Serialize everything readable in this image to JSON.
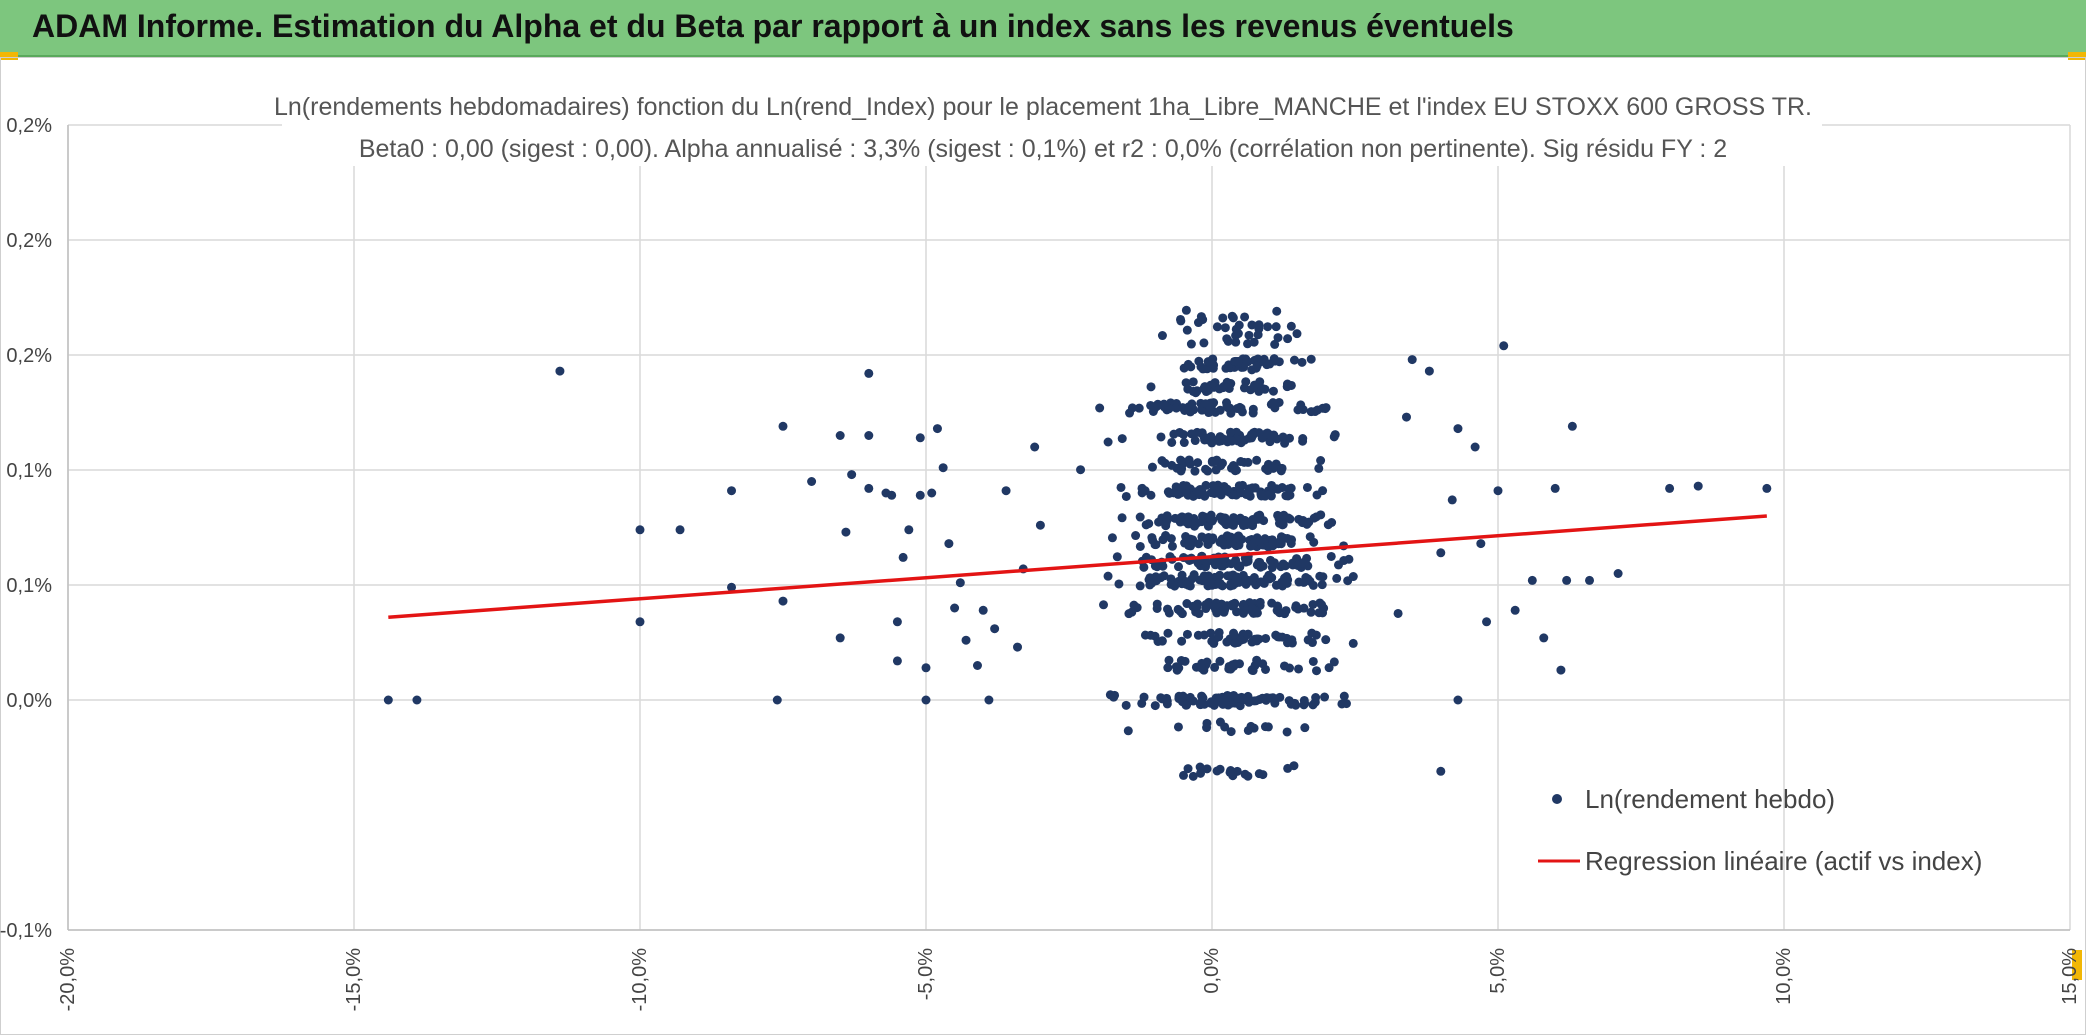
{
  "banner": {
    "title": "ADAM Informe. Estimation du Alpha et du Beta par rapport à un index sans les revenus éventuels",
    "color": "#7dc67e"
  },
  "chart_data": {
    "type": "scatter",
    "title_line1": "Ln(rendements hebdomadaires) fonction du Ln(rend_Index) pour le placement 1ha_Libre_MANCHE et l'index EU STOXX 600 GROSS TR.",
    "title_line2": "Beta0 : 0,00 (sigest : 0,00). Alpha annualisé : 3,3% (sigest : 0,1%) et r2 : 0,0% (corrélation non pertinente). Sig résidu FY : 2",
    "xlim": [
      -0.2,
      0.15
    ],
    "ylim": [
      -0.001,
      0.0025
    ],
    "x_ticks": [
      -0.2,
      -0.15,
      -0.1,
      -0.05,
      0.0,
      0.05,
      0.1,
      0.15
    ],
    "x_tick_labels": [
      "-20,0%",
      "-15,0%",
      "-10,0%",
      "-5,0%",
      "0,0%",
      "5,0%",
      "10,0%",
      "15,0%"
    ],
    "y_ticks": [
      -0.001,
      0.0,
      0.0005,
      0.001,
      0.0015,
      0.002,
      0.0025
    ],
    "y_tick_labels": [
      "-0,1%",
      "0,0%",
      "0,1%",
      "0,1%",
      "0,2%",
      "0,2%",
      "0,2%"
    ],
    "series": [
      {
        "name": "Ln(rendement hebdo)",
        "kind": "points",
        "color": "#203864",
        "points": [
          [
            -0.144,
            0.0
          ],
          [
            -0.139,
            0.0
          ],
          [
            -0.114,
            0.00143
          ],
          [
            -0.1,
            0.00074
          ],
          [
            -0.1,
            0.00034
          ],
          [
            -0.093,
            0.00074
          ],
          [
            -0.084,
            0.00091
          ],
          [
            -0.084,
            0.00049
          ],
          [
            -0.075,
            0.00119
          ],
          [
            -0.075,
            0.00043
          ],
          [
            -0.076,
            0.0
          ],
          [
            -0.07,
            0.00095
          ],
          [
            -0.065,
            0.00115
          ],
          [
            -0.065,
            0.00027
          ],
          [
            -0.064,
            0.00073
          ],
          [
            -0.063,
            0.00098
          ],
          [
            -0.06,
            0.00142
          ],
          [
            -0.06,
            0.00115
          ],
          [
            -0.06,
            0.00092
          ],
          [
            -0.057,
            0.0009
          ],
          [
            -0.056,
            0.00089
          ],
          [
            -0.055,
            0.00034
          ],
          [
            -0.055,
            0.00017
          ],
          [
            -0.054,
            0.00062
          ],
          [
            -0.053,
            0.00074
          ],
          [
            -0.051,
            0.00114
          ],
          [
            -0.051,
            0.00089
          ],
          [
            -0.05,
            0.0
          ],
          [
            -0.05,
            0.00014
          ],
          [
            -0.049,
            0.0009
          ],
          [
            -0.048,
            0.00118
          ],
          [
            -0.047,
            0.00101
          ],
          [
            -0.046,
            0.00068
          ],
          [
            -0.045,
            0.0004
          ],
          [
            -0.044,
            0.00051
          ],
          [
            -0.043,
            0.00026
          ],
          [
            -0.041,
            0.00015
          ],
          [
            -0.04,
            0.00039
          ],
          [
            -0.039,
            0.0
          ],
          [
            -0.038,
            0.00031
          ],
          [
            -0.036,
            0.00091
          ],
          [
            -0.034,
            0.00023
          ],
          [
            -0.033,
            0.00057
          ],
          [
            -0.031,
            0.0011
          ],
          [
            -0.03,
            0.00076
          ]
        ]
      },
      {
        "name": "Regression linéaire (actif vs index)",
        "kind": "line",
        "color": "#e31414",
        "from": [
          -0.144,
          0.00036
        ],
        "to": [
          0.097,
          0.0008
        ]
      }
    ],
    "legend": [
      "Ln(rendement hebdo)",
      "Regression linéaire (actif vs index)"
    ],
    "grid": true,
    "legend_position": "lower-right"
  }
}
